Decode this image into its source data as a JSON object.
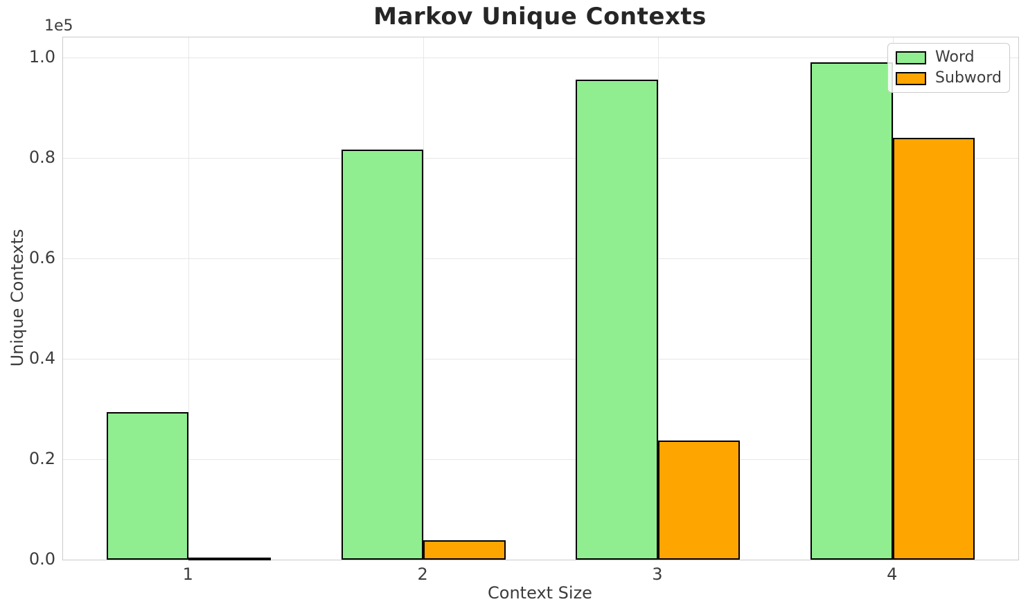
{
  "chart_data": {
    "type": "bar",
    "title": "Markov Unique Contexts",
    "xlabel": "Context Size",
    "ylabel": "Unique Contexts",
    "y_offset_label": "1e5",
    "categories": [
      "1",
      "2",
      "3",
      "4"
    ],
    "x_values": [
      1,
      2,
      3,
      4
    ],
    "series": [
      {
        "name": "Word",
        "color": "#90ee90",
        "values": [
          29400,
          81600,
          95600,
          99000
        ]
      },
      {
        "name": "Subword",
        "color": "#ffa500",
        "values": [
          400,
          3800,
          23700,
          84000
        ]
      }
    ],
    "bar_width": 0.35,
    "bar_edge_color": "#000000",
    "xlim": [
      0.465,
      4.535
    ],
    "ylim": [
      0,
      104000
    ],
    "yticks": {
      "values": [
        0,
        20000,
        40000,
        60000,
        80000,
        100000
      ],
      "labels": [
        "0.0",
        "0.2",
        "0.4",
        "0.6",
        "0.8",
        "1.0"
      ]
    },
    "grid": true,
    "legend": {
      "position": "upper-right",
      "entries": [
        "Word",
        "Subword"
      ]
    }
  },
  "style": {
    "background": "#ffffff",
    "grid_color": "#e7e7e7",
    "spine_color": "#cbcbcb",
    "tick_text_color": "#3c3c3c",
    "title_color": "#262626",
    "legend_border_color": "#cccccc"
  }
}
